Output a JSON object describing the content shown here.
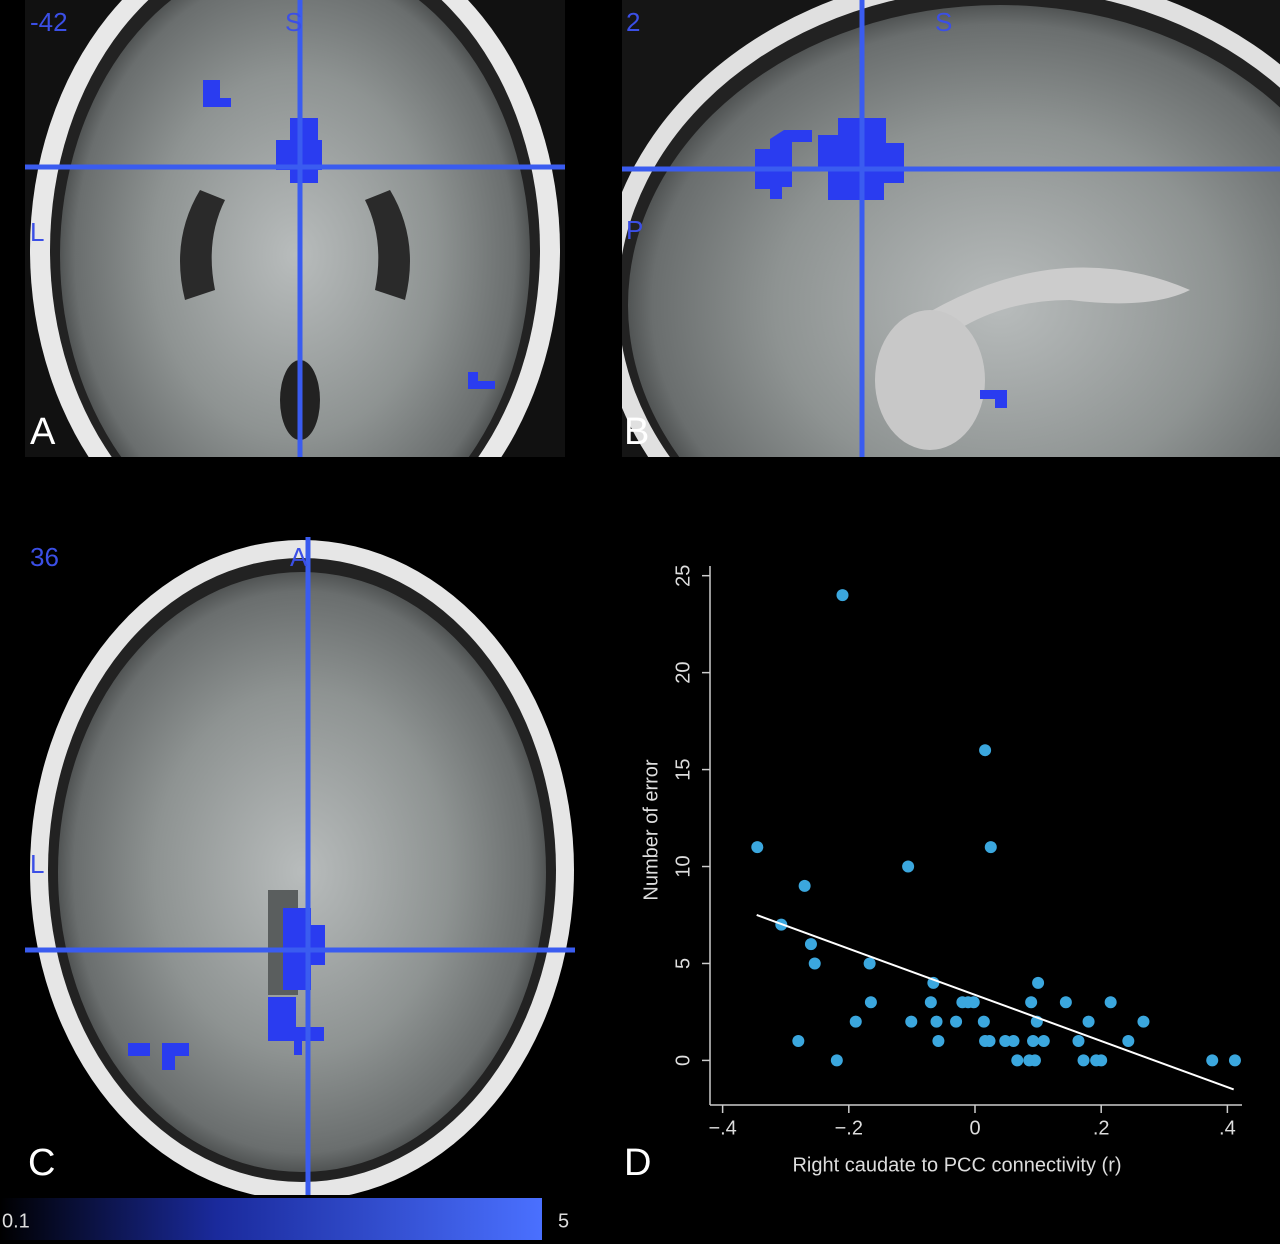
{
  "panels": [
    {
      "slice": -42,
      "top": "S",
      "side": "L",
      "letter": "A"
    },
    {
      "slice": 2,
      "top": "S",
      "side": "P",
      "letter": "B"
    },
    {
      "slice": 36,
      "top": "A",
      "side": "L",
      "letter": "C"
    }
  ],
  "colorbar": {
    "min": 0.1,
    "max": 5
  },
  "chart_data": {
    "type": "scatter",
    "panel_label": "D",
    "x_label": "Right caudate to PCC connectivity (r)",
    "y_label": "Number of error",
    "color": "#3ba7de",
    "x": [
      -0.345,
      -0.307,
      -0.27,
      -0.26,
      -0.254,
      -0.28,
      -0.219,
      -0.21,
      -0.189,
      -0.167,
      -0.165,
      -0.106,
      -0.101,
      -0.066,
      -0.07,
      -0.061,
      -0.058,
      -0.03,
      -0.02,
      -0.011,
      -0.002,
      0.014,
      0.016,
      0.016,
      0.025,
      0.023,
      0.048,
      0.061,
      0.067,
      0.089,
      0.086,
      0.092,
      0.095,
      0.1,
      0.098,
      0.109,
      0.144,
      0.164,
      0.172,
      0.18,
      0.192,
      0.2,
      0.215,
      0.243,
      0.267,
      0.376,
      0.412
    ],
    "values": [
      11,
      7,
      9,
      6,
      5,
      1,
      0,
      24,
      2,
      5,
      3,
      10,
      2,
      4,
      3,
      2,
      1,
      2,
      3,
      3,
      3,
      2,
      16,
      1,
      11,
      1,
      1,
      1,
      0,
      3,
      0,
      1,
      0,
      4,
      2,
      1,
      3,
      1,
      0,
      2,
      0,
      0,
      3,
      1,
      2,
      0,
      0
    ],
    "fit": {
      "x": [
        -0.346,
        0.41
      ],
      "y": [
        7.5,
        -1.5
      ]
    },
    "xlim": [
      -0.42,
      0.42
    ],
    "ylim": [
      -2.3,
      25.5
    ],
    "xticks": [
      {
        "value": -0.4,
        "label": "−.4"
      },
      {
        "value": -0.2,
        "label": "−.2"
      },
      0,
      {
        "value": 0.2,
        "label": ".2"
      },
      {
        "value": 0.4,
        "label": ".4"
      }
    ],
    "yticks": [
      0,
      5,
      10,
      15,
      20,
      25
    ]
  }
}
